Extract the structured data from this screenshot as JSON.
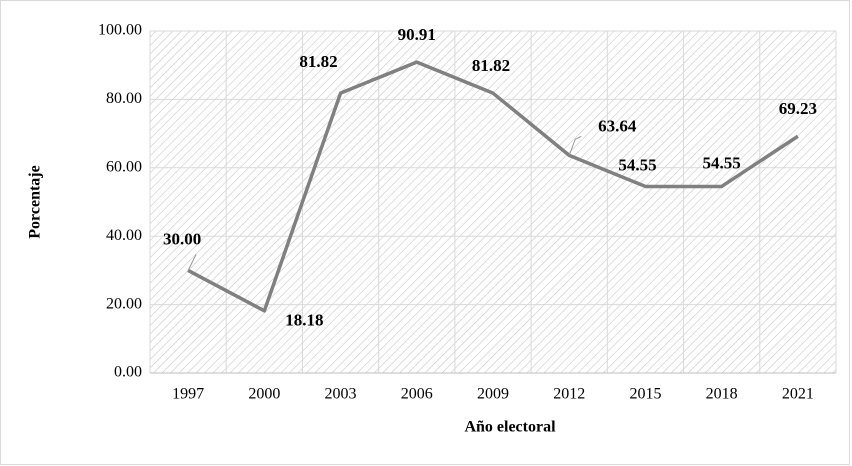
{
  "chart_data": {
    "type": "line",
    "x_label": "Año electoral",
    "y_label": "Porcentaje",
    "categories": [
      "1997",
      "2000",
      "2003",
      "2006",
      "2009",
      "2012",
      "2015",
      "2018",
      "2021"
    ],
    "values": [
      30.0,
      18.18,
      81.82,
      90.91,
      81.82,
      63.64,
      54.55,
      54.55,
      69.23
    ],
    "value_labels": [
      "30.00",
      "18.18",
      "81.82",
      "90.91",
      "81.82",
      "63.64",
      "54.55",
      "54.55",
      "69.23"
    ],
    "color": "#808080",
    "ylim": [
      0,
      100
    ],
    "yticks": [
      {
        "value": 0,
        "label": "0.00"
      },
      {
        "value": 20,
        "label": "20.00"
      },
      {
        "value": 40,
        "label": "40.00"
      },
      {
        "value": 60,
        "label": "60.00"
      },
      {
        "value": 80,
        "label": "80.00"
      },
      {
        "value": 100,
        "label": "100.00"
      }
    ],
    "grid": true
  }
}
